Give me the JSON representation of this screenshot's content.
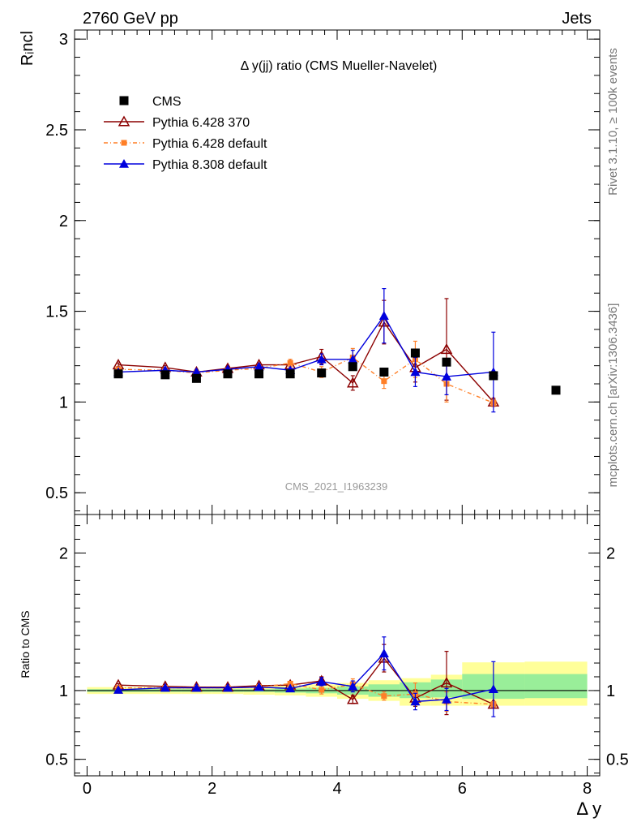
{
  "header": {
    "left": "2760 GeV pp",
    "right": "Jets",
    "side_top": "Rivet 3.1.10, ≥ 100k events",
    "side_bottom": "mcplots.cern.ch [arXiv:1306.3436]"
  },
  "chart_data": [
    {
      "type": "scatter",
      "title": "Δ y(jj) ratio (CMS Mueller-Navelet)",
      "ylabel": "Rᵢncl",
      "watermark": "CMS_2021_I1963239",
      "xlim": [
        -0.2,
        8.2
      ],
      "ylim": [
        0.38,
        3.05
      ],
      "yticks": [
        "0.5",
        "1",
        "1.5",
        "2",
        "2.5",
        "3"
      ],
      "legend_position": "top-left",
      "series": [
        {
          "name": "CMS",
          "color": "#000000",
          "marker": "square",
          "x": [
            0.5,
            1.25,
            1.75,
            2.25,
            2.75,
            3.25,
            3.75,
            4.25,
            4.75,
            5.25,
            5.75,
            6.5,
            7.5
          ],
          "y": [
            1.155,
            1.15,
            1.13,
            1.155,
            1.155,
            1.155,
            1.16,
            1.195,
            1.165,
            1.27,
            1.22,
            1.145,
            1.065
          ]
        },
        {
          "name": "Pythia 6.428 370",
          "color": "#8b0000",
          "marker": "open-triangle",
          "x": [
            0.5,
            1.25,
            1.75,
            2.25,
            2.75,
            3.25,
            3.75,
            4.25,
            4.75,
            5.25,
            5.75,
            6.5
          ],
          "y": [
            1.205,
            1.19,
            1.165,
            1.185,
            1.205,
            1.205,
            1.25,
            1.105,
            1.44,
            1.19,
            1.29,
            1.0
          ],
          "err": [
            0.01,
            0.01,
            0.01,
            0.01,
            0.01,
            0.01,
            0.04,
            0.04,
            0.12,
            0.08,
            0.28,
            0.02
          ]
        },
        {
          "name": "Pythia 6.428 default",
          "color": "#ff7f27",
          "marker": "small-square",
          "x": [
            0.5,
            1.25,
            1.75,
            2.25,
            2.75,
            3.25,
            3.75,
            4.25,
            4.75,
            5.25,
            5.75,
            6.5
          ],
          "y": [
            1.18,
            1.175,
            1.16,
            1.175,
            1.185,
            1.215,
            1.165,
            1.245,
            1.115,
            1.235,
            1.1,
            0.995
          ],
          "err": [
            0.01,
            0.01,
            0.01,
            0.01,
            0.01,
            0.02,
            0.03,
            0.05,
            0.04,
            0.1,
            0.1,
            0.02
          ]
        },
        {
          "name": "Pythia 8.308 default",
          "color": "#0000dd",
          "marker": "triangle",
          "x": [
            0.5,
            1.25,
            1.75,
            2.25,
            2.75,
            3.25,
            3.75,
            4.25,
            4.75,
            5.25,
            5.75,
            6.5
          ],
          "y": [
            1.165,
            1.175,
            1.165,
            1.18,
            1.195,
            1.175,
            1.235,
            1.235,
            1.475,
            1.165,
            1.14,
            1.165
          ],
          "err": [
            0.01,
            0.01,
            0.01,
            0.01,
            0.01,
            0.01,
            0.03,
            0.05,
            0.15,
            0.08,
            0.1,
            0.22
          ]
        }
      ]
    },
    {
      "type": "scatter",
      "title": "",
      "ylabel": "Ratio to CMS",
      "xlabel": "Δ y",
      "xlim": [
        -0.2,
        8.2
      ],
      "ylim": [
        0.38,
        2.28
      ],
      "xticks": [
        "0",
        "2",
        "4",
        "6",
        "8"
      ],
      "yticks": [
        "0.5",
        "1",
        "2"
      ],
      "bands": {
        "edges": [
          0,
          1,
          1.5,
          2,
          2.5,
          3,
          3.5,
          4,
          4.5,
          5,
          5.5,
          6,
          7,
          8
        ],
        "green_lo": [
          0.99,
          0.99,
          0.99,
          0.99,
          0.99,
          0.985,
          0.98,
          0.97,
          0.955,
          0.945,
          0.95,
          0.94,
          0.945
        ],
        "green_hi": [
          1.01,
          1.01,
          1.01,
          1.01,
          1.01,
          1.015,
          1.02,
          1.03,
          1.045,
          1.06,
          1.08,
          1.12,
          1.12
        ],
        "yellow_lo": [
          0.975,
          0.975,
          0.975,
          0.975,
          0.97,
          0.965,
          0.955,
          0.94,
          0.925,
          0.89,
          0.89,
          0.89,
          0.89
        ],
        "yellow_hi": [
          1.025,
          1.025,
          1.025,
          1.025,
          1.03,
          1.035,
          1.045,
          1.055,
          1.075,
          1.09,
          1.115,
          1.205,
          1.21
        ]
      },
      "series": [
        {
          "name": "Pythia 6.428 370",
          "x": [
            0.5,
            1.25,
            1.75,
            2.25,
            2.75,
            3.25,
            3.75,
            4.25,
            4.75,
            5.25,
            5.75,
            6.5
          ],
          "y": [
            1.04,
            1.03,
            1.025,
            1.025,
            1.035,
            1.04,
            1.07,
            0.935,
            1.235,
            0.945,
            1.055,
            0.9
          ],
          "err": [
            0.01,
            0.01,
            0.01,
            0.01,
            0.01,
            0.01,
            0.03,
            0.03,
            0.1,
            0.06,
            0.23,
            0.02
          ]
        },
        {
          "name": "Pythia 6.428 default",
          "x": [
            0.5,
            1.25,
            1.75,
            2.25,
            2.75,
            3.25,
            3.75,
            4.25,
            4.75,
            5.25,
            5.75,
            6.5
          ],
          "y": [
            1.02,
            1.02,
            1.02,
            1.02,
            1.025,
            1.05,
            1.005,
            1.045,
            0.96,
            0.975,
            0.92,
            0.9
          ],
          "err": [
            0.01,
            0.01,
            0.01,
            0.01,
            0.01,
            0.01,
            0.03,
            0.04,
            0.03,
            0.08,
            0.07,
            0.02
          ]
        },
        {
          "name": "Pythia 8.308 default",
          "x": [
            0.5,
            1.25,
            1.75,
            2.25,
            2.75,
            3.25,
            3.75,
            4.25,
            4.75,
            5.25,
            5.75,
            6.5
          ],
          "y": [
            1.005,
            1.02,
            1.02,
            1.02,
            1.025,
            1.015,
            1.065,
            1.03,
            1.27,
            0.92,
            0.935,
            1.01
          ],
          "err": [
            0.01,
            0.01,
            0.01,
            0.01,
            0.01,
            0.01,
            0.03,
            0.04,
            0.12,
            0.06,
            0.08,
            0.2
          ]
        }
      ]
    }
  ]
}
